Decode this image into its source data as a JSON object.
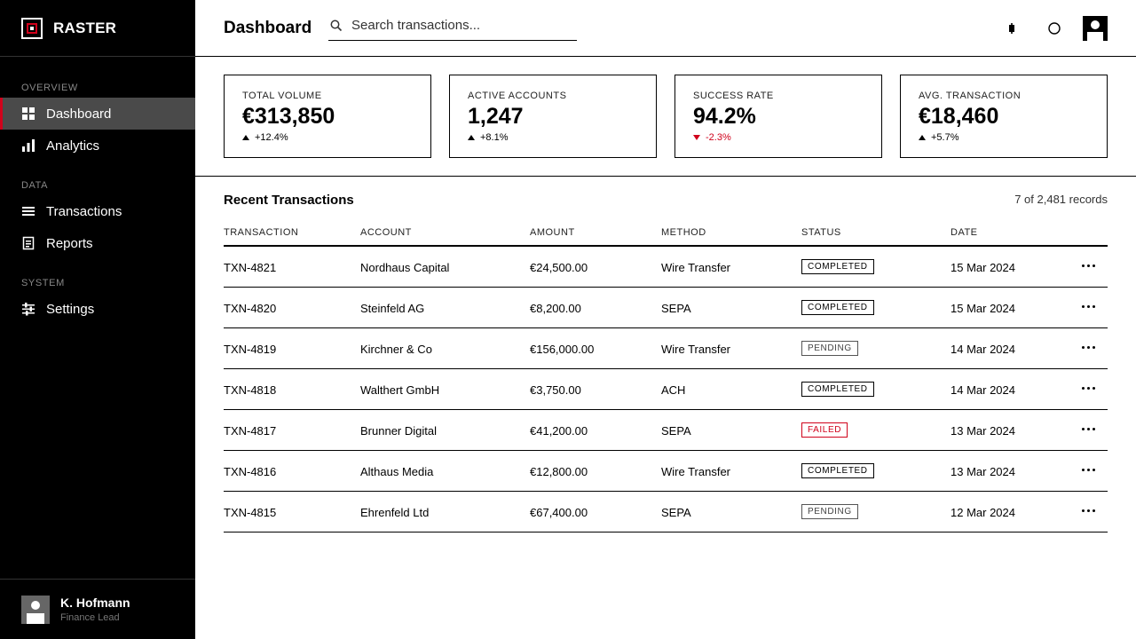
{
  "brand": {
    "name": "RASTER"
  },
  "sidebar": {
    "sections": [
      {
        "label": "OVERVIEW"
      },
      {
        "label": "DATA"
      },
      {
        "label": "SYSTEM"
      }
    ],
    "items": [
      {
        "label": "Dashboard",
        "icon": "grid-icon",
        "active": true
      },
      {
        "label": "Analytics",
        "icon": "bar-chart-icon"
      },
      {
        "label": "Transactions",
        "icon": "list-icon"
      },
      {
        "label": "Reports",
        "icon": "document-icon"
      },
      {
        "label": "Settings",
        "icon": "sliders-icon"
      }
    ],
    "user": {
      "name": "K. Hofmann",
      "role": "Finance Lead"
    }
  },
  "header": {
    "title": "Dashboard",
    "search_placeholder": "Search transactions...",
    "icons": [
      "bell-icon",
      "circle-icon",
      "user-avatar-icon"
    ]
  },
  "kpis": [
    {
      "label": "TOTAL VOLUME",
      "value": "€313,850",
      "delta": "+12.4%",
      "direction": "up"
    },
    {
      "label": "ACTIVE ACCOUNTS",
      "value": "1,247",
      "delta": "+8.1%",
      "direction": "up"
    },
    {
      "label": "SUCCESS RATE",
      "value": "94.2%",
      "delta": "-2.3%",
      "direction": "down"
    },
    {
      "label": "AVG. TRANSACTION",
      "value": "€18,460",
      "delta": "+5.7%",
      "direction": "up"
    }
  ],
  "table": {
    "title": "Recent Transactions",
    "count": "7 of 2,481 records",
    "columns": [
      "TRANSACTION",
      "ACCOUNT",
      "AMOUNT",
      "METHOD",
      "STATUS",
      "DATE"
    ],
    "rows": [
      {
        "id": "TXN-4821",
        "account": "Nordhaus Capital",
        "amount": "€24,500.00",
        "method": "Wire Transfer",
        "status": "COMPLETED",
        "date": "15 Mar 2024"
      },
      {
        "id": "TXN-4820",
        "account": "Steinfeld AG",
        "amount": "€8,200.00",
        "method": "SEPA",
        "status": "COMPLETED",
        "date": "15 Mar 2024"
      },
      {
        "id": "TXN-4819",
        "account": "Kirchner & Co",
        "amount": "€156,000.00",
        "method": "Wire Transfer",
        "status": "PENDING",
        "date": "14 Mar 2024"
      },
      {
        "id": "TXN-4818",
        "account": "Walthert GmbH",
        "amount": "€3,750.00",
        "method": "ACH",
        "status": "COMPLETED",
        "date": "14 Mar 2024"
      },
      {
        "id": "TXN-4817",
        "account": "Brunner Digital",
        "amount": "€41,200.00",
        "method": "SEPA",
        "status": "FAILED",
        "date": "13 Mar 2024"
      },
      {
        "id": "TXN-4816",
        "account": "Althaus Media",
        "amount": "€12,800.00",
        "method": "Wire Transfer",
        "status": "COMPLETED",
        "date": "13 Mar 2024"
      },
      {
        "id": "TXN-4815",
        "account": "Ehrenfeld Ltd",
        "amount": "€67,400.00",
        "method": "SEPA",
        "status": "PENDING",
        "date": "12 Mar 2024"
      }
    ]
  },
  "colors": {
    "accent": "#d0021b",
    "sidebar_bg": "#000000",
    "active_item_bg": "#4a4a4a"
  }
}
